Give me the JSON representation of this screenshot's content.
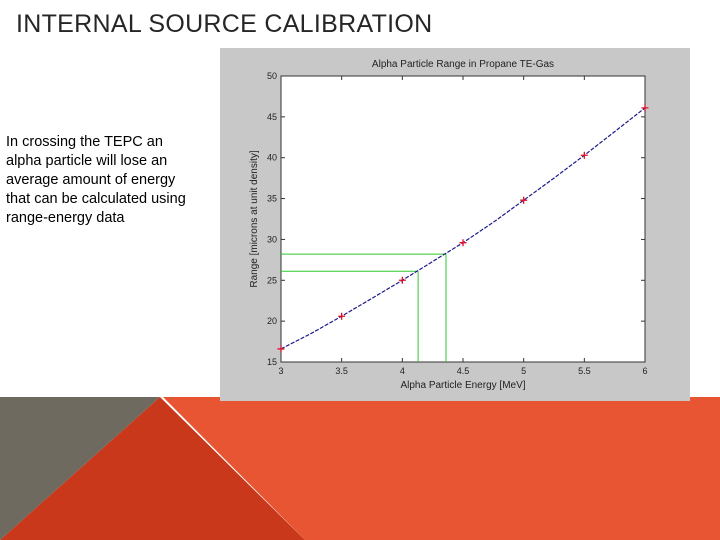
{
  "slide": {
    "title": "INTERNAL SOURCE CALIBRATION",
    "body": "In crossing the TEPC an alpha particle will lose an average amount of energy that can be calculated using range-energy data"
  },
  "colors": {
    "figure_bg": "#c8c8c8",
    "axes_bg": "#ffffff",
    "curve": "#1a1a8c",
    "markers": "#e0102a",
    "guides": "#2ec82e",
    "deco_gray": "#6e6a60",
    "deco_red_dark": "#c9381a",
    "deco_red_light": "#e85532"
  },
  "chart_data": {
    "type": "line",
    "title": "Alpha Particle Range in Propane TE-Gas",
    "xlabel": "Alpha Particle Energy [MeV]",
    "ylabel": "Range [microns at unit density]",
    "xlim": [
      3,
      6
    ],
    "ylim": [
      15,
      50
    ],
    "xticks": [
      "3",
      "3.5",
      "4",
      "4.5",
      "5",
      "5.5",
      "6"
    ],
    "yticks": [
      "15",
      "20",
      "25",
      "30",
      "35",
      "40",
      "45",
      "50"
    ],
    "grid": false,
    "series": [
      {
        "style": "markers",
        "x": [
          3,
          3.5,
          4,
          4.5,
          5,
          5.5,
          6
        ],
        "y": [
          16.6,
          20.6,
          25.0,
          29.6,
          34.8,
          40.3,
          46.1
        ]
      }
    ],
    "fit_curve": {
      "x": [
        3,
        3.25,
        3.5,
        3.75,
        4,
        4.25,
        4.5,
        4.75,
        5,
        5.25,
        5.5,
        5.75,
        6
      ],
      "y": [
        16.6,
        18.5,
        20.6,
        22.8,
        25.0,
        27.3,
        29.6,
        32.1,
        34.8,
        37.5,
        40.3,
        43.2,
        46.1
      ]
    },
    "guide_lines": [
      {
        "energy": 4.13,
        "range": 26.1
      },
      {
        "energy": 4.36,
        "range": 28.2
      }
    ]
  }
}
